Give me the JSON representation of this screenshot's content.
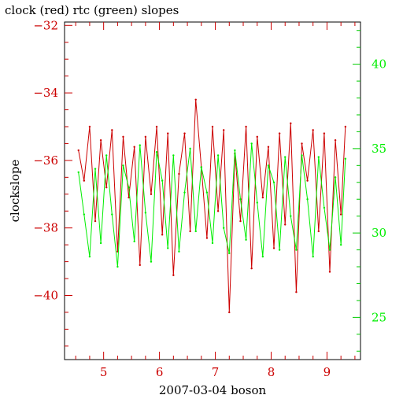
{
  "chart_data": {
    "type": "line",
    "title": "clock (red) rtc (green) slopes",
    "xlabel": "2007-03-04 boson",
    "ylabel": "clockslope",
    "x_range": [
      4.3,
      9.6
    ],
    "left_y_range": [
      -41.9,
      -31.9
    ],
    "right_y_range": [
      22.5,
      42.5
    ],
    "x_ticks": [
      "5",
      "6",
      "7",
      "8",
      "9"
    ],
    "left_y_ticks": [
      "-32",
      "-34",
      "-36",
      "-38",
      "-40"
    ],
    "right_y_ticks": [
      "25",
      "30",
      "35",
      "40"
    ],
    "series": [
      {
        "name": "clock",
        "color": "#cc0000",
        "axis": "left",
        "x": [
          4.55,
          4.65,
          4.75,
          4.85,
          4.95,
          5.05,
          5.15,
          5.25,
          5.35,
          5.45,
          5.55,
          5.65,
          5.75,
          5.85,
          5.95,
          6.05,
          6.15,
          6.25,
          6.35,
          6.45,
          6.55,
          6.65,
          6.75,
          6.85,
          6.95,
          7.05,
          7.15,
          7.25,
          7.35,
          7.45,
          7.55,
          7.65,
          7.75,
          7.85,
          7.95,
          8.05,
          8.15,
          8.25,
          8.35,
          8.45,
          8.55,
          8.65,
          8.75,
          8.85,
          8.95,
          9.05,
          9.15,
          9.25,
          9.33
        ],
        "values": [
          -35.7,
          -36.6,
          -35.0,
          -37.8,
          -35.4,
          -36.8,
          -35.1,
          -38.7,
          -35.3,
          -37.1,
          -35.6,
          -39.1,
          -35.3,
          -37.0,
          -35.0,
          -38.2,
          -35.2,
          -39.4,
          -36.4,
          -35.2,
          -38.1,
          -34.2,
          -36.2,
          -38.3,
          -35.0,
          -37.5,
          -35.1,
          -40.5,
          -35.8,
          -37.8,
          -35.0,
          -39.2,
          -35.3,
          -37.1,
          -35.6,
          -38.6,
          -35.2,
          -37.9,
          -34.9,
          -39.9,
          -35.5,
          -36.6,
          -35.1,
          -38.1,
          -35.2,
          -39.3,
          -35.4,
          -37.6,
          -35.0
        ]
      },
      {
        "name": "rtc",
        "color": "#00ee00",
        "axis": "right",
        "x": [
          4.55,
          4.65,
          4.75,
          4.85,
          4.95,
          5.05,
          5.15,
          5.25,
          5.35,
          5.45,
          5.55,
          5.65,
          5.75,
          5.85,
          5.95,
          6.05,
          6.15,
          6.25,
          6.35,
          6.45,
          6.55,
          6.65,
          6.75,
          6.85,
          6.95,
          7.05,
          7.15,
          7.25,
          7.35,
          7.45,
          7.55,
          7.65,
          7.75,
          7.85,
          7.95,
          8.05,
          8.15,
          8.25,
          8.35,
          8.45,
          8.55,
          8.65,
          8.75,
          8.85,
          8.95,
          9.05,
          9.15,
          9.25,
          9.33
        ],
        "values": [
          33.6,
          31.1,
          28.6,
          33.8,
          29.4,
          34.6,
          31.1,
          28.0,
          34.0,
          32.7,
          29.5,
          35.2,
          31.2,
          28.3,
          34.8,
          33.1,
          29.1,
          34.6,
          28.9,
          32.4,
          35.0,
          30.1,
          33.9,
          32.4,
          29.4,
          34.6,
          30.3,
          28.8,
          34.9,
          32.0,
          29.6,
          35.3,
          31.8,
          28.6,
          34.0,
          33.0,
          29.0,
          34.5,
          31.0,
          29.0,
          34.6,
          32.0,
          28.6,
          34.5,
          31.5,
          29.0,
          33.3,
          29.3,
          34.4
        ]
      }
    ]
  }
}
